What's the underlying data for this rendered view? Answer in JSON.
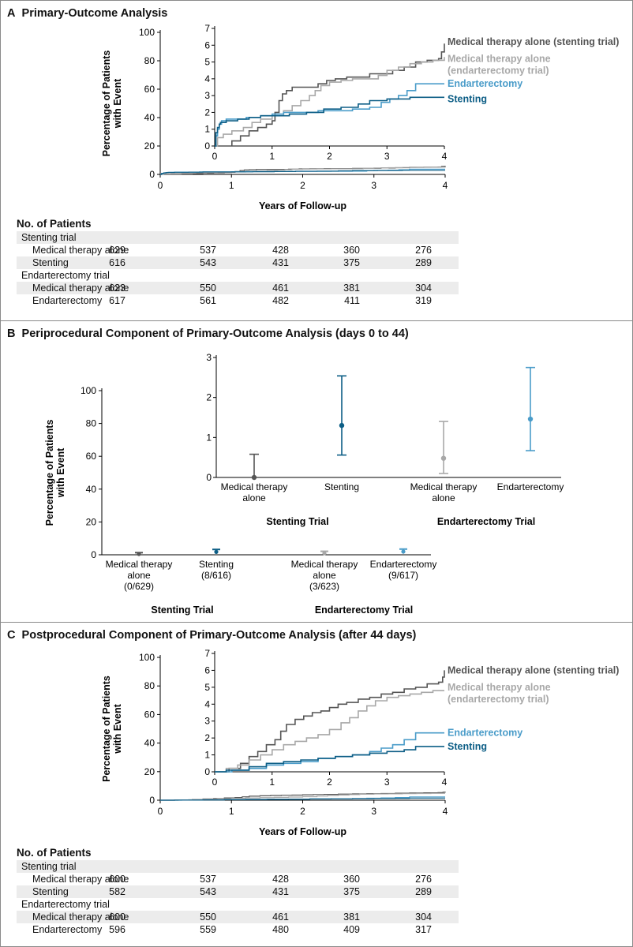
{
  "panels": [
    {
      "id": "A",
      "letter": "A",
      "title": "Primary-Outcome Analysis",
      "risk_table": {
        "title": "No. of Patients",
        "rows": [
          {
            "label": "Stenting trial",
            "group": true,
            "values": []
          },
          {
            "label": "Medical therapy alone",
            "group": false,
            "values": [
              "629",
              "537",
              "428",
              "360",
              "276"
            ]
          },
          {
            "label": "Stenting",
            "group": false,
            "values": [
              "616",
              "543",
              "431",
              "375",
              "289"
            ]
          },
          {
            "label": "Endarterectomy trial",
            "group": true,
            "values": []
          },
          {
            "label": "Medical therapy alone",
            "group": false,
            "values": [
              "623",
              "550",
              "461",
              "381",
              "304"
            ]
          },
          {
            "label": "Endarterectomy",
            "group": false,
            "values": [
              "617",
              "561",
              "482",
              "411",
              "319"
            ]
          }
        ]
      }
    },
    {
      "id": "B",
      "letter": "B",
      "title": "Periprocedural Component of Primary-Outcome Analysis (days 0 to 44)"
    },
    {
      "id": "C",
      "letter": "C",
      "title": "Postprocedural Component of Primary-Outcome Analysis (after 44 days)",
      "risk_table": {
        "title": "No. of Patients",
        "rows": [
          {
            "label": "Stenting trial",
            "group": true,
            "values": []
          },
          {
            "label": "Medical therapy alone",
            "group": false,
            "values": [
              "600",
              "537",
              "428",
              "360",
              "276"
            ]
          },
          {
            "label": "Stenting",
            "group": false,
            "values": [
              "582",
              "543",
              "431",
              "375",
              "289"
            ]
          },
          {
            "label": "Endarterectomy trial",
            "group": true,
            "values": []
          },
          {
            "label": "Medical therapy alone",
            "group": false,
            "values": [
              "600",
              "550",
              "461",
              "381",
              "304"
            ]
          },
          {
            "label": "Endarterectomy",
            "group": false,
            "values": [
              "596",
              "559",
              "480",
              "409",
              "317"
            ]
          }
        ]
      }
    }
  ],
  "colors": {
    "med_stent": "#555555",
    "med_endart": "#a8a8a8",
    "endarterectomy": "#4a9cc9",
    "stenting": "#0d5e86"
  },
  "chart_data": [
    {
      "panel": "A",
      "type": "line",
      "step": true,
      "xlabel": "Years of Follow-up",
      "ylabel": "Percentage of Patients with Event",
      "xlim": [
        0,
        4
      ],
      "ylim": [
        0,
        100
      ],
      "xticks": [
        0,
        1,
        2,
        3,
        4
      ],
      "yticks": [
        0,
        20,
        40,
        60,
        80,
        100
      ],
      "inset": {
        "xlim": [
          0,
          4
        ],
        "ylim": [
          0,
          7
        ],
        "xticks": [
          0,
          1,
          2,
          3,
          4
        ],
        "yticks": [
          0,
          1,
          2,
          3,
          4,
          5,
          6,
          7
        ]
      },
      "series": [
        {
          "name": "Medical therapy alone (stenting trial)",
          "label_lines": [
            "Medical therapy alone (stenting trial)"
          ],
          "label_y": 6.2,
          "color": "#555555",
          "x": [
            0,
            0.15,
            0.3,
            0.45,
            0.6,
            0.75,
            0.9,
            1.0,
            1.05,
            1.12,
            1.18,
            1.25,
            1.35,
            1.45,
            1.6,
            1.8,
            1.95,
            2.1,
            2.3,
            2.5,
            2.7,
            2.9,
            3.1,
            3.3,
            3.5,
            3.7,
            3.9,
            3.95,
            4.0
          ],
          "y": [
            0,
            0,
            0.3,
            0.6,
            0.9,
            1.1,
            1.3,
            1.5,
            2.0,
            2.7,
            3.1,
            3.3,
            3.5,
            3.5,
            3.5,
            3.7,
            3.9,
            4.0,
            4.1,
            4.1,
            4.3,
            4.3,
            4.5,
            4.7,
            5.0,
            5.1,
            5.2,
            5.6,
            6.1
          ]
        },
        {
          "name": "Medical therapy alone (endarterectomy trial)",
          "label_lines": [
            "Medical therapy alone",
            "(endarterectomy trial)"
          ],
          "label_y": 5.2,
          "color": "#a8a8a8",
          "x": [
            0,
            0.05,
            0.15,
            0.3,
            0.5,
            0.65,
            0.8,
            1.0,
            1.2,
            1.35,
            1.5,
            1.65,
            1.75,
            1.85,
            2.0,
            2.2,
            2.4,
            2.6,
            2.85,
            3.0,
            3.2,
            3.4,
            3.6,
            3.8,
            4.0
          ],
          "y": [
            0,
            0.5,
            0.7,
            0.9,
            1.1,
            1.4,
            1.6,
            1.8,
            2.1,
            2.4,
            2.7,
            3.0,
            3.3,
            3.6,
            3.8,
            3.9,
            4.0,
            4.0,
            4.2,
            4.5,
            4.7,
            4.9,
            5.0,
            5.1,
            5.3
          ]
        },
        {
          "name": "Endarterectomy",
          "label_lines": [
            "Endarterectomy"
          ],
          "label_y": 3.7,
          "color": "#4a9cc9",
          "x": [
            0,
            0.02,
            0.05,
            0.08,
            0.12,
            0.2,
            0.35,
            0.55,
            0.8,
            1.0,
            1.2,
            1.5,
            1.8,
            2.1,
            2.4,
            2.7,
            2.9,
            3.05,
            3.2,
            3.35,
            3.5,
            4.0
          ],
          "y": [
            0,
            0.6,
            1.0,
            1.3,
            1.5,
            1.6,
            1.6,
            1.7,
            1.8,
            1.9,
            2.0,
            2.0,
            2.1,
            2.1,
            2.2,
            2.3,
            2.6,
            2.8,
            3.0,
            3.3,
            3.7,
            3.7
          ]
        },
        {
          "name": "Stenting",
          "label_lines": [
            "Stenting"
          ],
          "label_y": 2.8,
          "color": "#0d5e86",
          "x": [
            0,
            0.02,
            0.05,
            0.08,
            0.1,
            0.2,
            0.4,
            0.6,
            0.8,
            1.0,
            1.3,
            1.6,
            1.9,
            2.2,
            2.5,
            2.7,
            3.0,
            3.4,
            4.0
          ],
          "y": [
            0,
            0.8,
            1.1,
            1.3,
            1.4,
            1.5,
            1.6,
            1.7,
            1.8,
            1.8,
            1.9,
            2.0,
            2.2,
            2.3,
            2.5,
            2.7,
            2.8,
            2.9,
            2.9
          ]
        }
      ]
    },
    {
      "panel": "B",
      "type": "scatter",
      "error_bars": true,
      "ylabel": "Percentage of Patients with Event",
      "ylim": [
        0,
        100
      ],
      "yticks": [
        0,
        20,
        40,
        60,
        80,
        100
      ],
      "inset": {
        "ylim": [
          0,
          3
        ],
        "yticks": [
          0,
          1,
          2,
          3
        ]
      },
      "groups": [
        "Stenting Trial",
        "Endarterectomy Trial"
      ],
      "points": [
        {
          "label_lines": [
            "Medical therapy",
            "alone"
          ],
          "count_label": "(0/629)",
          "group": "Stenting Trial",
          "value": 0.0,
          "ci": [
            0.0,
            0.58
          ],
          "color": "#555555"
        },
        {
          "label_lines": [
            "Stenting"
          ],
          "count_label": "(8/616)",
          "group": "Stenting Trial",
          "value": 1.3,
          "ci": [
            0.56,
            2.54
          ],
          "color": "#0d5e86"
        },
        {
          "label_lines": [
            "Medical therapy",
            "alone"
          ],
          "count_label": "(3/623)",
          "group": "Endarterectomy Trial",
          "value": 0.48,
          "ci": [
            0.1,
            1.4
          ],
          "color": "#a8a8a8"
        },
        {
          "label_lines": [
            "Endarterectomy"
          ],
          "count_label": "(9/617)",
          "group": "Endarterectomy Trial",
          "value": 1.46,
          "ci": [
            0.67,
            2.75
          ],
          "color": "#4a9cc9"
        }
      ]
    },
    {
      "panel": "C",
      "type": "line",
      "step": true,
      "xlabel": "Years of Follow-up",
      "ylabel": "Percentage of Patients with Event",
      "xlim": [
        0,
        4
      ],
      "ylim": [
        0,
        100
      ],
      "xticks": [
        0,
        1,
        2,
        3,
        4
      ],
      "yticks": [
        0,
        20,
        40,
        60,
        80,
        100
      ],
      "inset": {
        "xlim": [
          0,
          4
        ],
        "ylim": [
          0,
          7
        ],
        "xticks": [
          0,
          1,
          2,
          3,
          4
        ],
        "yticks": [
          0,
          1,
          2,
          3,
          4,
          5,
          6,
          7
        ]
      },
      "series": [
        {
          "name": "Medical therapy alone (stenting trial)",
          "label_lines": [
            "Medical therapy alone (stenting trial)"
          ],
          "label_y": 6.0,
          "color": "#555555",
          "x": [
            0,
            0.25,
            0.45,
            0.6,
            0.75,
            0.9,
            1.05,
            1.15,
            1.25,
            1.4,
            1.55,
            1.7,
            1.85,
            2.0,
            2.15,
            2.3,
            2.5,
            2.7,
            2.9,
            3.1,
            3.3,
            3.5,
            3.7,
            3.9,
            3.97,
            4.0
          ],
          "y": [
            0,
            0.2,
            0.5,
            0.9,
            1.2,
            1.6,
            1.9,
            2.4,
            2.8,
            3.1,
            3.3,
            3.5,
            3.6,
            3.8,
            4.0,
            4.1,
            4.3,
            4.4,
            4.6,
            4.7,
            4.9,
            5.0,
            5.2,
            5.3,
            5.6,
            6.0
          ]
        },
        {
          "name": "Medical therapy alone (endarterectomy trial)",
          "label_lines": [
            "Medical therapy alone",
            "(endarterectomy trial)"
          ],
          "label_y": 5.0,
          "color": "#a8a8a8",
          "x": [
            0,
            0.2,
            0.4,
            0.6,
            0.8,
            1.0,
            1.2,
            1.4,
            1.6,
            1.8,
            2.0,
            2.2,
            2.35,
            2.5,
            2.65,
            2.8,
            3.0,
            3.2,
            3.4,
            3.6,
            3.8,
            4.0
          ],
          "y": [
            0,
            0.2,
            0.4,
            0.7,
            1.0,
            1.3,
            1.6,
            1.8,
            2.0,
            2.2,
            2.5,
            2.9,
            3.2,
            3.6,
            3.9,
            4.2,
            4.4,
            4.5,
            4.6,
            4.7,
            4.8,
            4.8
          ]
        },
        {
          "name": "Endarterectomy",
          "label_lines": [
            "Endarterectomy"
          ],
          "label_y": 2.3,
          "color": "#4a9cc9",
          "x": [
            0,
            0.3,
            0.6,
            0.9,
            1.2,
            1.5,
            1.8,
            2.1,
            2.4,
            2.7,
            2.9,
            3.1,
            3.3,
            3.5,
            4.0
          ],
          "y": [
            0,
            0.1,
            0.2,
            0.4,
            0.5,
            0.6,
            0.8,
            0.9,
            1.0,
            1.2,
            1.4,
            1.6,
            1.9,
            2.3,
            2.3
          ]
        },
        {
          "name": "Stenting",
          "label_lines": [
            "Stenting"
          ],
          "label_y": 1.5,
          "color": "#0d5e86",
          "x": [
            0,
            0.2,
            0.6,
            0.9,
            1.2,
            1.5,
            1.8,
            2.1,
            2.4,
            2.7,
            3.0,
            3.3,
            3.5,
            4.0
          ],
          "y": [
            0,
            0.1,
            0.3,
            0.5,
            0.6,
            0.7,
            0.8,
            0.9,
            1.0,
            1.1,
            1.2,
            1.3,
            1.5,
            1.5
          ]
        }
      ]
    }
  ]
}
